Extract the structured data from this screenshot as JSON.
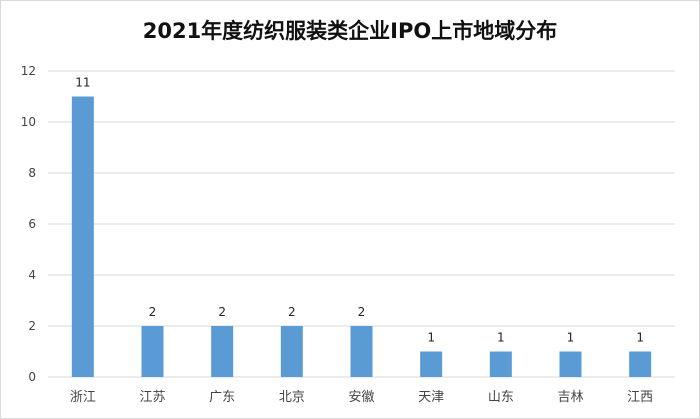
{
  "chart_data": {
    "type": "bar",
    "title": "2021年度纺织服装类企业IPO上市地域分布",
    "xlabel": "",
    "ylabel": "",
    "categories": [
      "浙江",
      "江苏",
      "广东",
      "北京",
      "安徽",
      "天津",
      "山东",
      "吉林",
      "江西"
    ],
    "values": [
      11,
      2,
      2,
      2,
      2,
      1,
      1,
      1,
      1
    ],
    "ylim": [
      0,
      12
    ],
    "yticks": [
      0,
      2,
      4,
      6,
      8,
      10,
      12
    ],
    "grid": true,
    "legend": "none",
    "bar_color": "#5b9bd5",
    "grid_color": "#d9d9d9"
  }
}
